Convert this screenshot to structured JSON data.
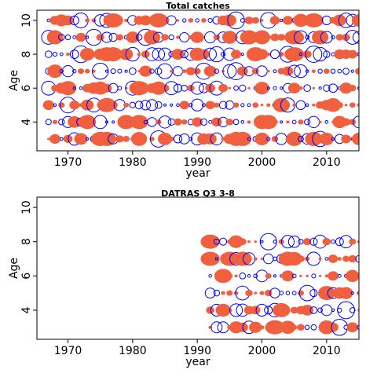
{
  "chart_data": [
    {
      "type": "scatter",
      "subtype": "bubble-residuals",
      "title": "Total catches",
      "xlabel": "year",
      "ylabel": "Age",
      "xlim": [
        1965.2,
        2015
      ],
      "ylim": [
        2.3,
        10.6
      ],
      "xticks": [
        1970,
        1980,
        1990,
        2000,
        2010
      ],
      "yticks": [
        4,
        6,
        8,
        10
      ],
      "years": [
        1967,
        2015
      ],
      "ages": [
        3,
        10
      ],
      "colors": {
        "positive": "#f0603f",
        "negative": "#0000ff"
      },
      "positive_style": "filled",
      "negative_style": "open-circle"
    },
    {
      "type": "scatter",
      "subtype": "bubble-residuals",
      "title": "DATRAS Q3 3-8",
      "xlabel": "year",
      "ylabel": "Age",
      "xlim": [
        1965.2,
        2015
      ],
      "ylim": [
        2.3,
        10.6
      ],
      "xticks": [
        1970,
        1980,
        1990,
        2000,
        2010
      ],
      "yticks": [
        4,
        6,
        8,
        10
      ],
      "years": [
        1992,
        2015
      ],
      "ages": [
        3,
        8
      ],
      "colors": {
        "positive": "#f0603f",
        "negative": "#0000ff"
      },
      "positive_style": "filled",
      "negative_style": "open-circle"
    }
  ]
}
